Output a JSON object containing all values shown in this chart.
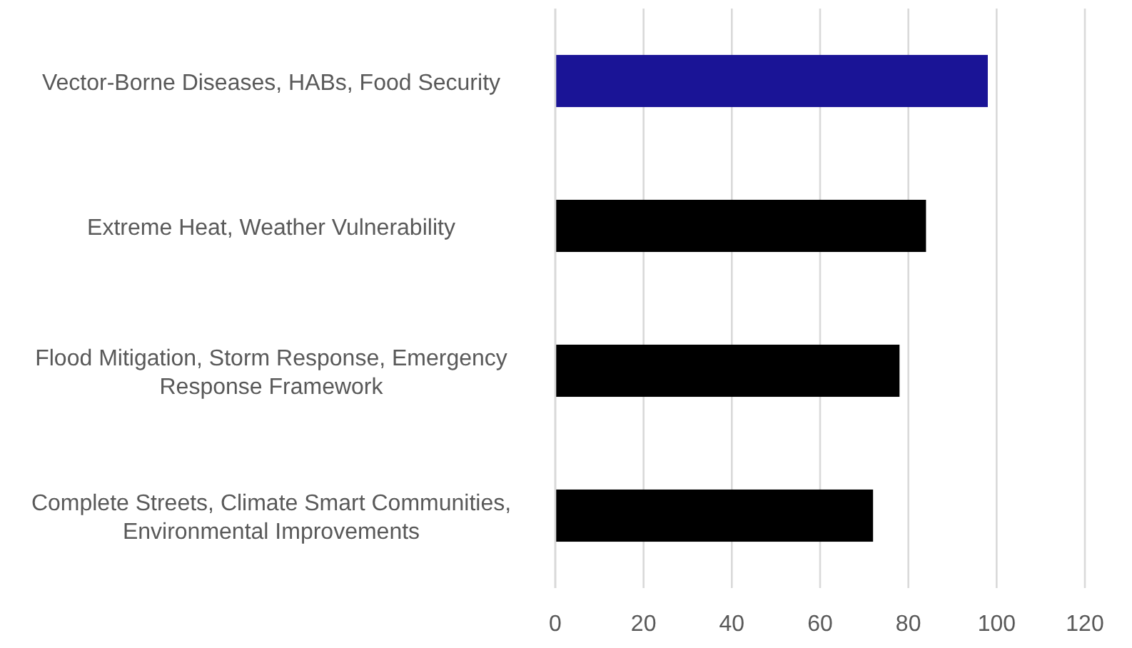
{
  "chart_data": {
    "type": "bar",
    "orientation": "horizontal",
    "categories": [
      "Vector-Borne Diseases, HABs, Food Security",
      "Extreme Heat, Weather Vulnerability",
      "Flood Mitigation, Storm Response, Emergency Response Framework",
      "Complete Streets, Climate Smart Communities, Environmental Improvements"
    ],
    "values": [
      98,
      84,
      78,
      72
    ],
    "colors": [
      "#1a1496",
      "#000000",
      "#000000",
      "#000000"
    ],
    "xlim": [
      0,
      120
    ],
    "xticks": [
      0,
      20,
      40,
      60,
      80,
      100,
      120
    ],
    "grid": "x"
  }
}
